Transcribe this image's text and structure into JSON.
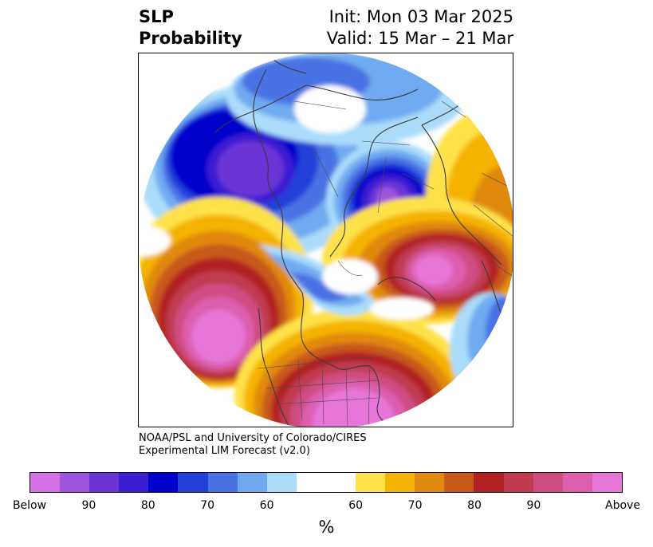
{
  "header": {
    "left_line1": "SLP",
    "left_line2": "Probability",
    "right_line1": "Init: Mon 03 Mar 2025",
    "right_line2": "Valid: 15 Mar – 21 Mar"
  },
  "credit": {
    "line1": "NOAA/PSL and University of Colorado/CIRES",
    "line2": "Experimental LIM Forecast (v2.0)"
  },
  "colorbar": {
    "colors": [
      "#d670e6",
      "#9e55de",
      "#6b35d6",
      "#3a1fd2",
      "#0000cc",
      "#2340d8",
      "#4a72e4",
      "#6faaf0",
      "#aadcfa",
      "#ffffff",
      "#ffe24a",
      "#f4b300",
      "#e08a10",
      "#c85a1a",
      "#b22222",
      "#c03a50",
      "#cf4e82",
      "#dc5fad",
      "#e676d8"
    ],
    "tick_labels": [
      "Below",
      "90",
      "80",
      "70",
      "60",
      "60",
      "70",
      "80",
      "90",
      "Above"
    ],
    "unit": "%"
  }
}
